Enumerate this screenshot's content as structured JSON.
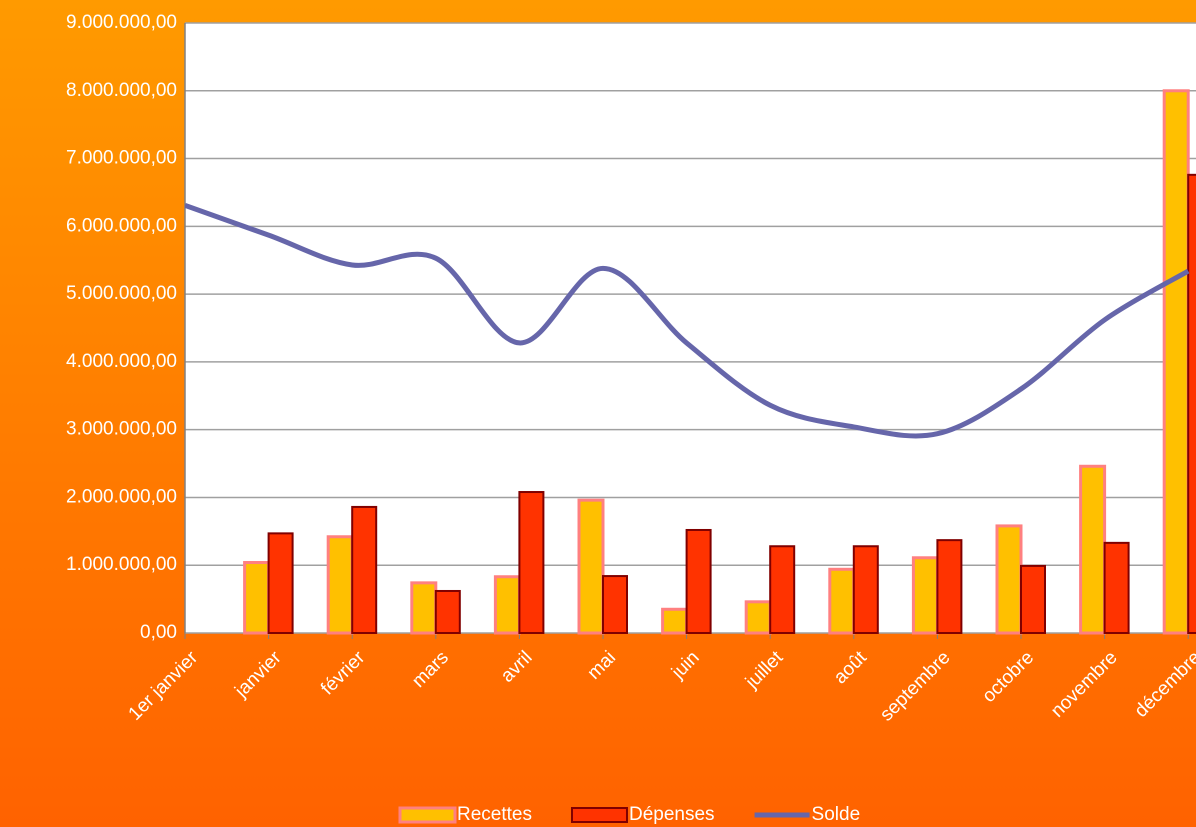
{
  "chart_data": {
    "type": "bar-line",
    "categories": [
      "1er janvier",
      "janvier",
      "février",
      "mars",
      "avril",
      "mai",
      "juin",
      "juillet",
      "août",
      "septembre",
      "octobre",
      "novembre",
      "décembre"
    ],
    "series": [
      {
        "name": "Recettes",
        "type": "bar",
        "color": "#ffc000",
        "edge": "#ff8080",
        "values": [
          null,
          1040000,
          1420000,
          740000,
          830000,
          1960000,
          350000,
          460000,
          940000,
          1110000,
          1580000,
          2460000,
          8000000
        ]
      },
      {
        "name": "Dépenses",
        "type": "bar",
        "color": "#ff3300",
        "edge": "#800000",
        "values": [
          null,
          1470000,
          1860000,
          620000,
          2080000,
          840000,
          1520000,
          1280000,
          1280000,
          1370000,
          990000,
          1330000,
          6760000
        ]
      },
      {
        "name": "Solde",
        "type": "line",
        "color": "#6666aa",
        "values": [
          6310000,
          5870000,
          5430000,
          5530000,
          4280000,
          5380000,
          4280000,
          3360000,
          3040000,
          2940000,
          3600000,
          4620000,
          5340000
        ]
      }
    ],
    "ylim": [
      0,
      9000000
    ],
    "yticks": [
      {
        "value": 0,
        "label": "0,00"
      },
      {
        "value": 1000000,
        "label": "1.000.000,00"
      },
      {
        "value": 2000000,
        "label": "2.000.000,00"
      },
      {
        "value": 3000000,
        "label": "3.000.000,00"
      },
      {
        "value": 4000000,
        "label": "4.000.000,00"
      },
      {
        "value": 5000000,
        "label": "5.000.000,00"
      },
      {
        "value": 6000000,
        "label": "6.000.000,00"
      },
      {
        "value": 7000000,
        "label": "7.000.000,00"
      },
      {
        "value": 8000000,
        "label": "8.000.000,00"
      },
      {
        "value": 9000000,
        "label": "9.000.000,00"
      }
    ],
    "grid": true,
    "legend": "bottom"
  }
}
